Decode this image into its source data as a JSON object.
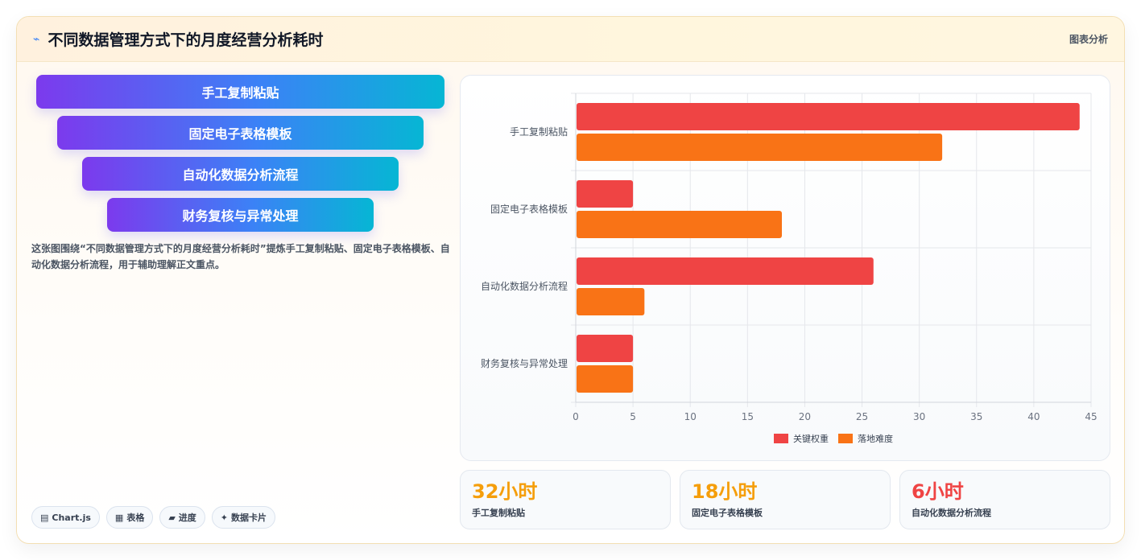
{
  "header": {
    "icon": "trend-icon",
    "title": "不同数据管理方式下的月度经营分析耗时",
    "tag": "图表分析"
  },
  "funnel": [
    {
      "label": "手工复制粘贴"
    },
    {
      "label": "固定电子表格模板"
    },
    {
      "label": "自动化数据分析流程"
    },
    {
      "label": "财务复核与异常处理"
    }
  ],
  "description": "这张图围绕“不同数据管理方式下的月度经营分析耗时”提炼手工复制粘贴、固定电子表格模板、自动化数据分析流程，用于辅助理解正文重点。",
  "tags": [
    {
      "icon": "▤",
      "label": "Chart.js"
    },
    {
      "icon": "▦",
      "label": "表格"
    },
    {
      "icon": "▰",
      "label": "进度"
    },
    {
      "icon": "✦",
      "label": "数据卡片"
    }
  ],
  "chart_data": {
    "type": "bar",
    "orientation": "horizontal",
    "categories": [
      "手工复制粘贴",
      "固定电子表格模板",
      "自动化数据分析流程",
      "财务复核与异常处理"
    ],
    "series": [
      {
        "name": "关键权重",
        "color": "#ef4444",
        "values": [
          44,
          5,
          26,
          5
        ]
      },
      {
        "name": "落地难度",
        "color": "#f97316",
        "values": [
          32,
          18,
          6,
          5
        ]
      }
    ],
    "xlim": [
      0,
      45
    ],
    "xticks": [
      0,
      5,
      10,
      15,
      20,
      25,
      30,
      35,
      40,
      45
    ],
    "grid": true,
    "legend_position": "bottom"
  },
  "stats": [
    {
      "value": "32小时",
      "label": "手工复制粘贴",
      "color": "#f59e0b"
    },
    {
      "value": "18小时",
      "label": "固定电子表格模板",
      "color": "#f59e0b"
    },
    {
      "value": "6小时",
      "label": "自动化数据分析流程",
      "color": "#ef4444"
    }
  ]
}
